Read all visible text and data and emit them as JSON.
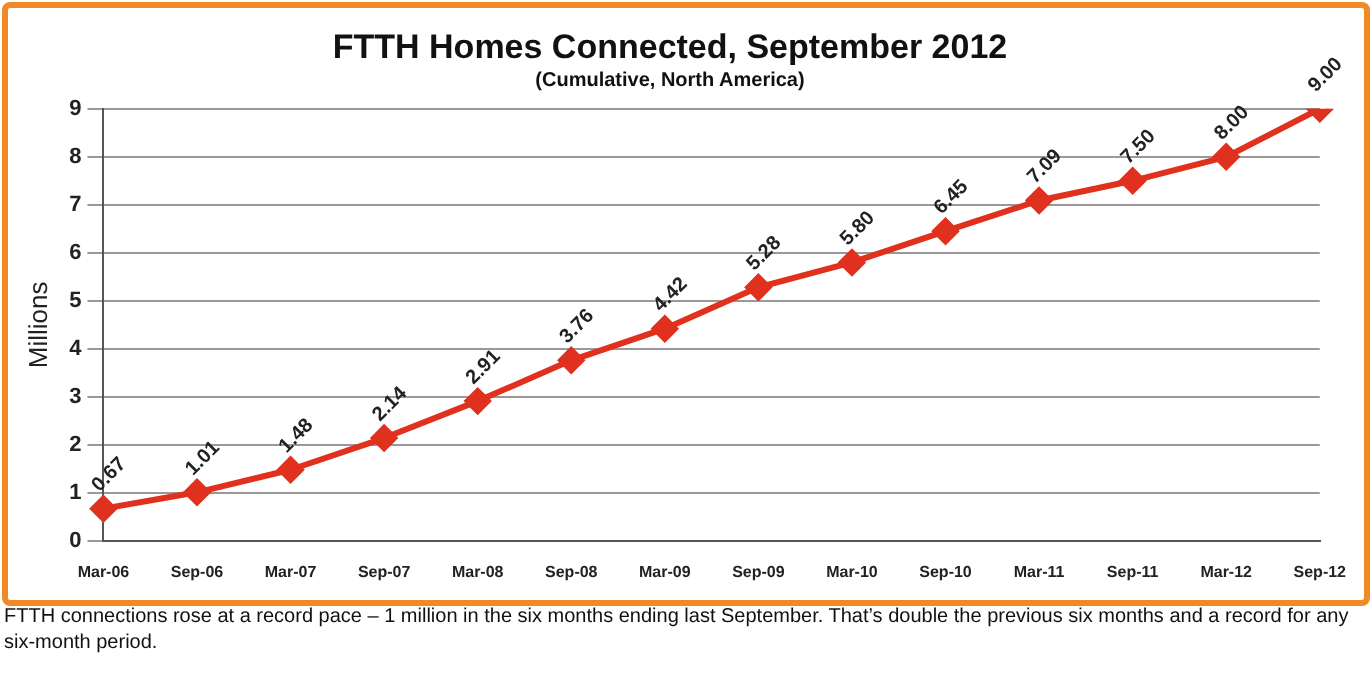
{
  "chart_data": {
    "type": "line",
    "title": "FTTH Homes Connected, September 2012",
    "subtitle": "(Cumulative, North America)",
    "ylabel": "Millions",
    "categories": [
      "Mar-06",
      "Sep-06",
      "Mar-07",
      "Sep-07",
      "Mar-08",
      "Sep-08",
      "Mar-09",
      "Sep-09",
      "Mar-10",
      "Sep-10",
      "Mar-11",
      "Sep-11",
      "Mar-12",
      "Sep-12"
    ],
    "series": [
      {
        "color": "#e0301e",
        "values": [
          0.67,
          1.01,
          1.48,
          2.14,
          2.91,
          3.76,
          4.42,
          5.28,
          5.8,
          6.45,
          7.09,
          7.5,
          8,
          9
        ],
        "value_labels": [
          "0.67",
          "1.01",
          "1.48",
          "2.14",
          "2.91",
          "3.76",
          "4.42",
          "5.28",
          "5.80",
          "6.45",
          "7.09",
          "7.50",
          "8.00",
          "9.00"
        ]
      }
    ],
    "ylim": [
      0,
      9
    ],
    "yticks": [
      0,
      1,
      2,
      3,
      4,
      5,
      6,
      7,
      8,
      9
    ],
    "grid": "y",
    "legend": false,
    "marker": "diamond",
    "line_style": "solid",
    "annotations": [
      "FTTH connections rose at a record pace – 1 million in the six months ending last September. That’s double the previous six months and a record for any six-month period."
    ]
  }
}
